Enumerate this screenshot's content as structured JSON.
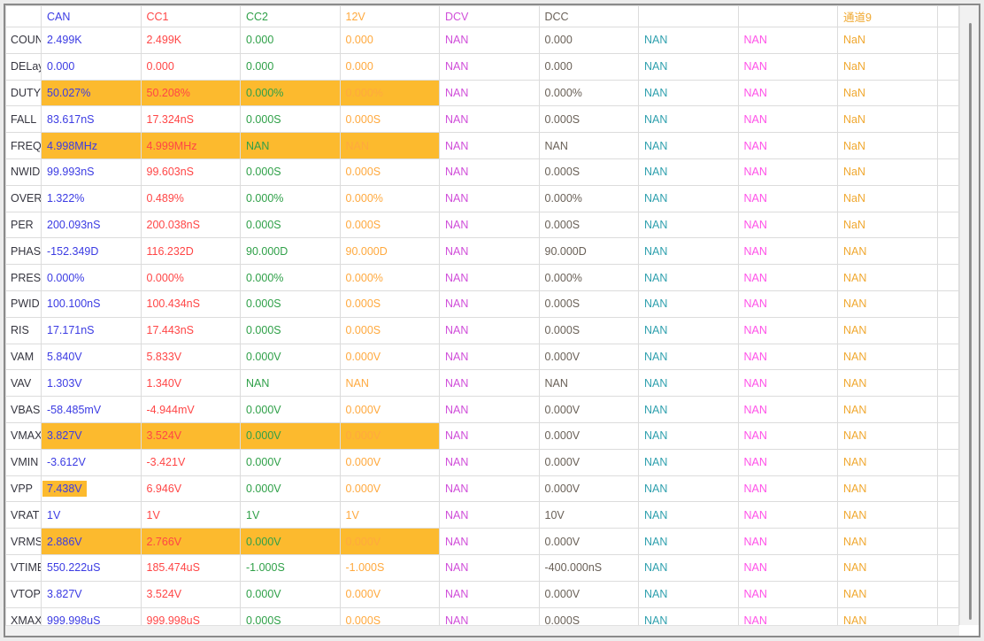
{
  "table": {
    "columns": [
      {
        "label": "CAN",
        "color": "#3b3be3"
      },
      {
        "label": "CC1",
        "color": "#ff4646"
      },
      {
        "label": "CC2",
        "color": "#2fa048"
      },
      {
        "label": "12V",
        "color": "#ffa93e"
      },
      {
        "label": "DCV",
        "color": "#d04ed9"
      },
      {
        "label": "DCC",
        "color": "#6a6158"
      },
      {
        "label": "",
        "color": "#2fa0ae"
      },
      {
        "label": "",
        "color": "#ff52e8"
      },
      {
        "label": "通道9",
        "color": "#f0a830"
      }
    ],
    "colors": {
      "highlight": "#fcba2e",
      "row_label": "#35353f",
      "grid_line": "#dcdcdc"
    },
    "rows": [
      {
        "label": "COUNT",
        "hl": "none",
        "cells": [
          "2.499K",
          "2.499K",
          "0.000",
          "0.000",
          "NAN",
          "0.000",
          "NAN",
          "NAN",
          "NaN"
        ]
      },
      {
        "label": "DELay",
        "hl": "none",
        "cells": [
          "0.000",
          "0.000",
          "0.000",
          "0.000",
          "NAN",
          "0.000",
          "NAN",
          "NAN",
          "NaN"
        ]
      },
      {
        "label": "DUTY",
        "hl": "first4",
        "cells": [
          "50.027%",
          "50.208%",
          "0.000%",
          "0.000%",
          "NAN",
          "0.000%",
          "NAN",
          "NAN",
          "NaN"
        ]
      },
      {
        "label": "FALL",
        "hl": "none",
        "cells": [
          "83.617nS",
          "17.324nS",
          "0.000S",
          "0.000S",
          "NAN",
          "0.000S",
          "NAN",
          "NAN",
          "NaN"
        ]
      },
      {
        "label": "FREQ",
        "hl": "first4",
        "cells": [
          "4.998MHz",
          "4.999MHz",
          "NAN",
          "NAN",
          "NAN",
          "NAN",
          "NAN",
          "NAN",
          "NaN"
        ]
      },
      {
        "label": "NWID",
        "hl": "none",
        "cells": [
          "99.993nS",
          "99.603nS",
          "0.000S",
          "0.000S",
          "NAN",
          "0.000S",
          "NAN",
          "NAN",
          "NaN"
        ]
      },
      {
        "label": "OVER",
        "hl": "none",
        "cells": [
          "1.322%",
          "0.489%",
          "0.000%",
          "0.000%",
          "NAN",
          "0.000%",
          "NAN",
          "NAN",
          "NaN"
        ]
      },
      {
        "label": "PER",
        "hl": "none",
        "cells": [
          "200.093nS",
          "200.038nS",
          "0.000S",
          "0.000S",
          "NAN",
          "0.000S",
          "NAN",
          "NAN",
          "NaN"
        ]
      },
      {
        "label": "PHASE",
        "hl": "none",
        "cells": [
          "-152.349D",
          "116.232D",
          "90.000D",
          "90.000D",
          "NAN",
          "90.000D",
          "NAN",
          "NAN",
          "NAN"
        ]
      },
      {
        "label": "PRES",
        "hl": "none",
        "cells": [
          "0.000%",
          "0.000%",
          "0.000%",
          "0.000%",
          "NAN",
          "0.000%",
          "NAN",
          "NAN",
          "NAN"
        ]
      },
      {
        "label": "PWID",
        "hl": "none",
        "cells": [
          "100.100nS",
          "100.434nS",
          "0.000S",
          "0.000S",
          "NAN",
          "0.000S",
          "NAN",
          "NAN",
          "NAN"
        ]
      },
      {
        "label": "RIS",
        "hl": "none",
        "cells": [
          "17.171nS",
          "17.443nS",
          "0.000S",
          "0.000S",
          "NAN",
          "0.000S",
          "NAN",
          "NAN",
          "NAN"
        ]
      },
      {
        "label": "VAM",
        "hl": "none",
        "cells": [
          "5.840V",
          "5.833V",
          "0.000V",
          "0.000V",
          "NAN",
          "0.000V",
          "NAN",
          "NAN",
          "NAN"
        ]
      },
      {
        "label": "VAV",
        "hl": "none",
        "cells": [
          "1.303V",
          "1.340V",
          "NAN",
          "NAN",
          "NAN",
          "NAN",
          "NAN",
          "NAN",
          "NAN"
        ]
      },
      {
        "label": "VBASE",
        "hl": "none",
        "cells": [
          "-58.485mV",
          "-4.944mV",
          "0.000V",
          "0.000V",
          "NAN",
          "0.000V",
          "NAN",
          "NAN",
          "NAN"
        ]
      },
      {
        "label": "VMAX",
        "hl": "first4",
        "cells": [
          "3.827V",
          "3.524V",
          "0.000V",
          "0.000V",
          "NAN",
          "0.000V",
          "NAN",
          "NAN",
          "NAN"
        ]
      },
      {
        "label": "VMIN",
        "hl": "none",
        "cells": [
          "-3.612V",
          "-3.421V",
          "0.000V",
          "0.000V",
          "NAN",
          "0.000V",
          "NAN",
          "NAN",
          "NAN"
        ]
      },
      {
        "label": "VPP",
        "hl": "text-cell0",
        "cells": [
          "7.438V",
          "6.946V",
          "0.000V",
          "0.000V",
          "NAN",
          "0.000V",
          "NAN",
          "NAN",
          "NAN"
        ]
      },
      {
        "label": "VRAT",
        "hl": "none",
        "cells": [
          "1V",
          "1V",
          "1V",
          "1V",
          "NAN",
          "10V",
          "NAN",
          "NAN",
          "NAN"
        ]
      },
      {
        "label": "VRMS",
        "hl": "first4",
        "cells": [
          "2.886V",
          "2.766V",
          "0.000V",
          "0.000V",
          "NAN",
          "0.000V",
          "NAN",
          "NAN",
          "NAN"
        ]
      },
      {
        "label": "VTIME",
        "hl": "none",
        "cells": [
          "550.222uS",
          "185.474uS",
          "-1.000S",
          "-1.000S",
          "NAN",
          "-400.000nS",
          "NAN",
          "NAN",
          "NAN"
        ]
      },
      {
        "label": "VTOP",
        "hl": "none",
        "cells": [
          "3.827V",
          "3.524V",
          "0.000V",
          "0.000V",
          "NAN",
          "0.000V",
          "NAN",
          "NAN",
          "NAN"
        ]
      },
      {
        "label": "XMAX",
        "hl": "none",
        "cells": [
          "999.998uS",
          "999.998uS",
          "0.000S",
          "0.000S",
          "NAN",
          "0.000S",
          "NAN",
          "NAN",
          "NAN"
        ]
      }
    ]
  }
}
